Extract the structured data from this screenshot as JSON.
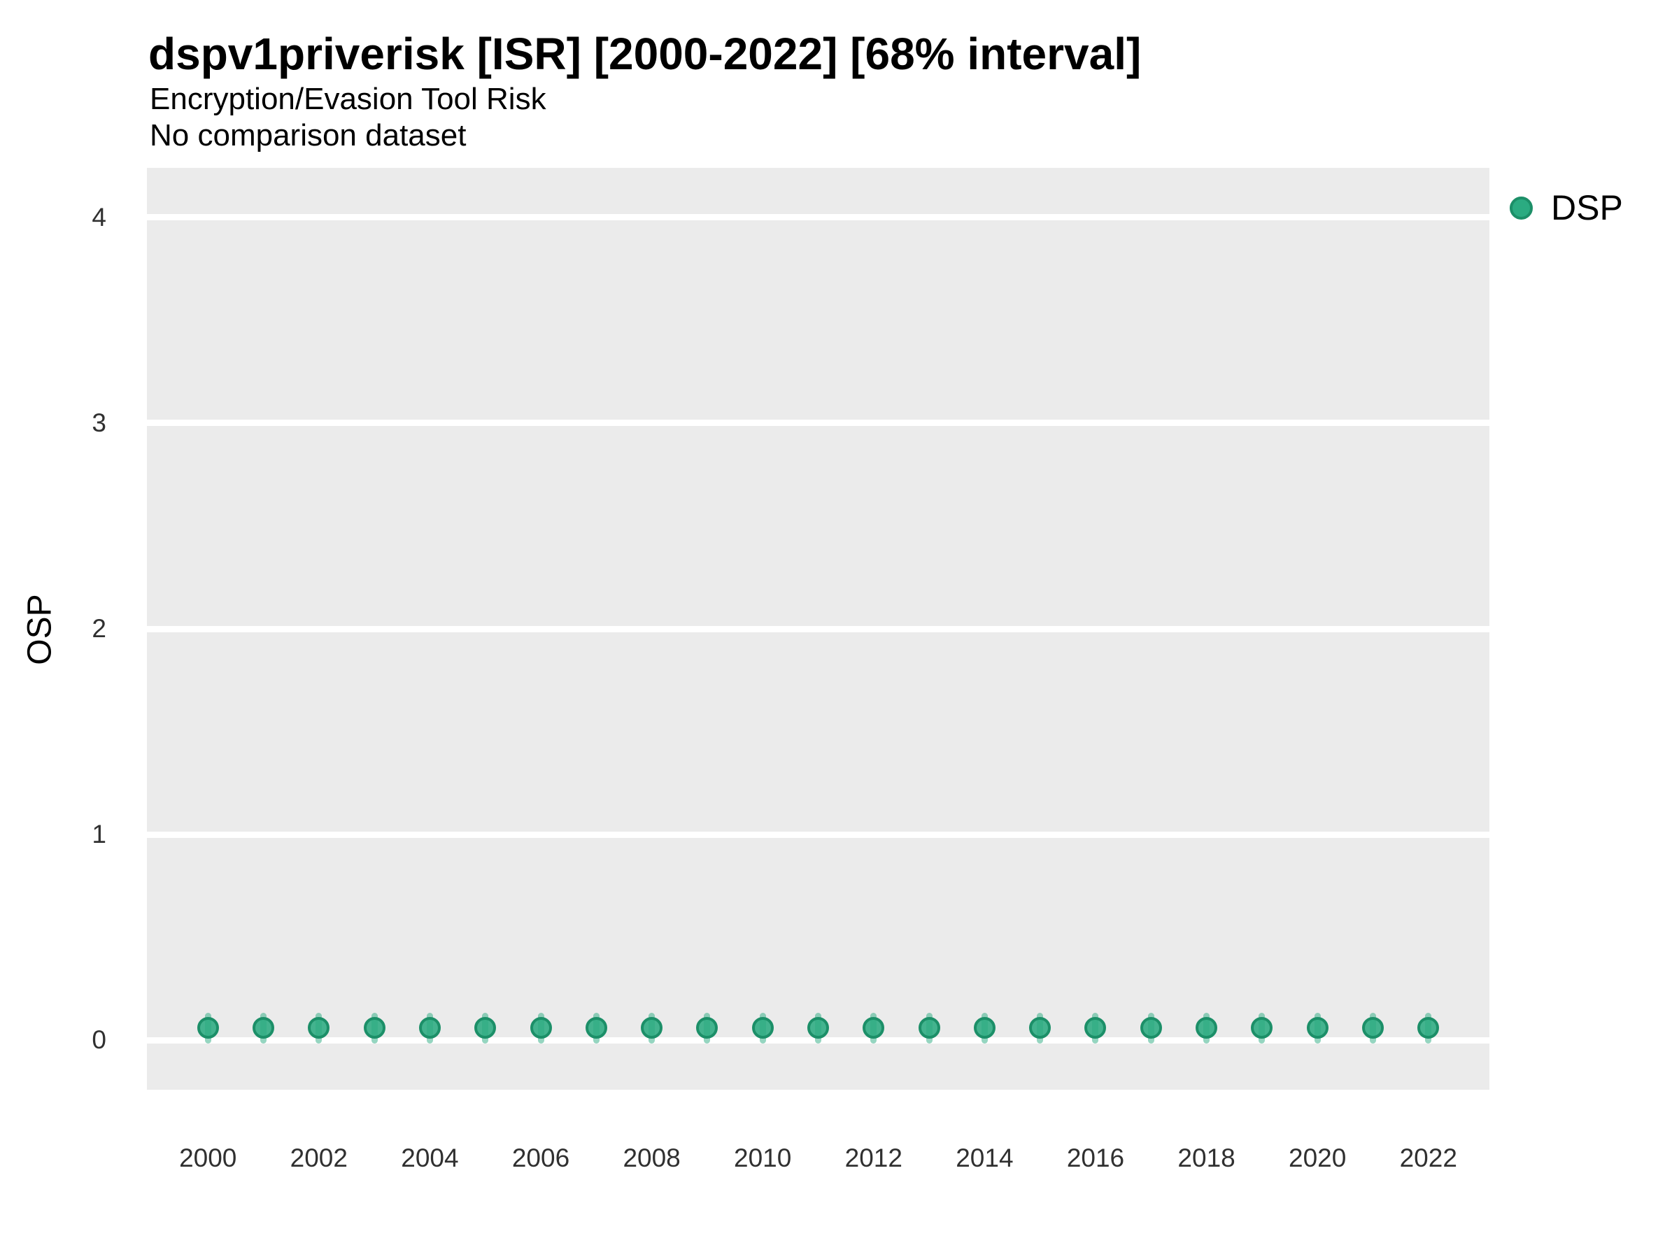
{
  "header": {
    "title": "dspv1priverisk [ISR] [2000-2022] [68% interval]",
    "subtitle": "Encryption/Evasion Tool Risk",
    "note": "No comparison dataset"
  },
  "legend": {
    "position": "right",
    "items": [
      {
        "label": "DSP",
        "marker": "circle-icon",
        "fill": "#2BAB81",
        "stroke": "#1C8F68"
      }
    ]
  },
  "colors": {
    "panel_background": "#EBEBEB",
    "gridline": "#FFFFFF",
    "point_fill": "#2BAB81",
    "point_stroke": "#1C8F68",
    "interval_bar": "rgba(43,171,129,0.5)",
    "tick_text": "#303030",
    "title_text": "#000000"
  },
  "chart_data": {
    "type": "scatter",
    "title": "dspv1priverisk [ISR] [2000-2022] [68% interval]",
    "subtitle": "Encryption/Evasion Tool Risk",
    "note": "No comparison dataset",
    "xlabel": "",
    "ylabel": "OSP",
    "grid": "horizontal-major-only",
    "legend_position": "right-top",
    "xlim": [
      1998.9,
      2023.1
    ],
    "ylim": [
      -0.24,
      4.24
    ],
    "y_ticks": [
      0,
      1,
      2,
      3,
      4
    ],
    "x_ticks": [
      2000,
      2002,
      2004,
      2006,
      2008,
      2010,
      2012,
      2014,
      2016,
      2018,
      2020,
      2022
    ],
    "series": [
      {
        "name": "DSP",
        "marker": "point-with-68pct-interval",
        "x": [
          2000,
          2001,
          2002,
          2003,
          2004,
          2005,
          2006,
          2007,
          2008,
          2009,
          2010,
          2011,
          2012,
          2013,
          2014,
          2015,
          2016,
          2017,
          2018,
          2019,
          2020,
          2021,
          2022
        ],
        "y": [
          0.06,
          0.06,
          0.06,
          0.06,
          0.06,
          0.06,
          0.06,
          0.06,
          0.06,
          0.06,
          0.06,
          0.06,
          0.06,
          0.06,
          0.06,
          0.06,
          0.06,
          0.06,
          0.06,
          0.06,
          0.06,
          0.06,
          0.06
        ],
        "y_lo": [
          -0.015,
          -0.015,
          -0.015,
          -0.015,
          -0.015,
          -0.015,
          -0.015,
          -0.015,
          -0.015,
          -0.015,
          -0.015,
          -0.015,
          -0.015,
          -0.015,
          -0.015,
          -0.015,
          -0.015,
          -0.015,
          -0.015,
          -0.015,
          -0.015,
          -0.015,
          -0.015
        ],
        "y_hi": [
          0.135,
          0.135,
          0.135,
          0.135,
          0.135,
          0.135,
          0.135,
          0.135,
          0.135,
          0.135,
          0.135,
          0.135,
          0.135,
          0.135,
          0.135,
          0.135,
          0.135,
          0.135,
          0.135,
          0.135,
          0.135,
          0.135,
          0.135
        ]
      }
    ]
  }
}
